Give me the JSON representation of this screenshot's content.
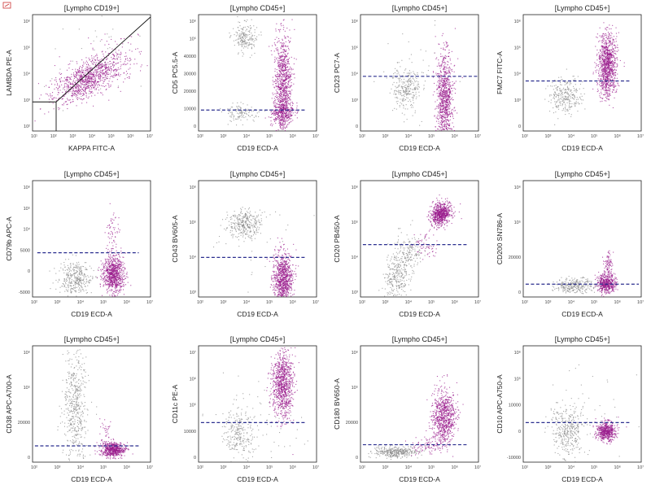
{
  "colors": {
    "gray_population": "#8a8a8a",
    "purple_population": "#9a1c8c",
    "threshold_line": "#2b2f8f"
  },
  "panels": [
    {
      "title": "[Lympho CD19+]",
      "xlabel": "KAPPA FITC-A",
      "ylabel": "LAMBDA PE-A",
      "x_ticks": [
        "10¹",
        "10²",
        "10³",
        "10⁴",
        "10⁵",
        "10⁶",
        "10⁷"
      ],
      "y_ticks": [
        "10⁶",
        "10⁵",
        "10⁴",
        "10³",
        "10²"
      ],
      "threshold": null
    },
    {
      "title": "[Lympho CD45+]",
      "xlabel": "CD19 ECD-A",
      "ylabel": "CD5 PC5.5-A",
      "x_ticks": [
        "10²",
        "10³",
        "10⁴",
        "10⁵",
        "10⁶",
        "10⁷"
      ],
      "y_ticks": [
        "10⁶",
        "10⁵",
        "40000",
        "30000",
        "20000",
        "10000",
        "0"
      ],
      "threshold": "10000"
    },
    {
      "title": "[Lympho CD45+]",
      "xlabel": "CD19 ECD-A",
      "ylabel": "CD23 PC7-A",
      "x_ticks": [
        "10²",
        "10³",
        "10⁴",
        "10⁵",
        "10⁶",
        "10⁷"
      ],
      "y_ticks": [
        "10⁶",
        "10⁵",
        "10⁴",
        "10³",
        "0"
      ],
      "threshold": "above 10⁴"
    },
    {
      "title": "[Lympho CD45+]",
      "xlabel": "CD19 ECD-A",
      "ylabel": "FMC7 FITC-A",
      "x_ticks": [
        "10²",
        "10³",
        "10⁴",
        "10⁵",
        "10⁶",
        "10⁷"
      ],
      "y_ticks": [
        "10⁶",
        "10⁵",
        "10⁴",
        "10³",
        "0"
      ],
      "threshold": "10⁴"
    },
    {
      "title": "[Lympho CD45+]",
      "xlabel": "CD19 ECD-A",
      "ylabel": "CD79b APC-A",
      "x_ticks": [
        "10²",
        "10³",
        "10⁴",
        "10⁵",
        "10⁶",
        "10⁷"
      ],
      "y_ticks": [
        "10⁶",
        "10⁵",
        "10⁴",
        "5000",
        "0",
        "-5000"
      ],
      "threshold": "5000"
    },
    {
      "title": "[Lympho CD45+]",
      "xlabel": "CD19 ECD-A",
      "ylabel": "CD43 BV605-A",
      "x_ticks": [
        "10²",
        "10³",
        "10⁴",
        "10⁵",
        "10⁶",
        "10⁷"
      ],
      "y_ticks": [
        "10⁶",
        "10⁵",
        "10⁴",
        "10³"
      ],
      "threshold": "10⁴"
    },
    {
      "title": "[Lympho CD45+]",
      "xlabel": "CD19 ECD-A",
      "ylabel": "CD20 PB450-A",
      "x_ticks": [
        "10²",
        "10³",
        "10⁴",
        "10⁵",
        "10⁶",
        "10⁷"
      ],
      "y_ticks": [
        "10⁶",
        "10⁵",
        "10⁴",
        "10³"
      ],
      "threshold": "10⁴"
    },
    {
      "title": "[Lympho CD45+]",
      "xlabel": "CD19 ECD-A",
      "ylabel": "CD200 SN786-A",
      "x_ticks": [
        "10²",
        "10³",
        "10⁴",
        "10⁵",
        "10⁶",
        "10⁷"
      ],
      "y_ticks": [
        "10⁶",
        "10⁵",
        "20000",
        "0"
      ],
      "threshold": "low"
    },
    {
      "title": "[Lympho CD45+]",
      "xlabel": "CD19 ECD-A",
      "ylabel": "CD38 APC-A700-A",
      "x_ticks": [
        "10²",
        "10³",
        "10⁴",
        "10⁵",
        "10⁶",
        "10⁷"
      ],
      "y_ticks": [
        "10⁶",
        "10⁵",
        "20000",
        "0"
      ],
      "threshold": "low"
    },
    {
      "title": "[Lympho CD45+]",
      "xlabel": "CD19 ECD-A",
      "ylabel": "CD11c PE-A",
      "x_ticks": [
        "10²",
        "10³",
        "10⁴",
        "10⁵",
        "10⁶",
        "10⁷"
      ],
      "y_ticks": [
        "10⁷",
        "10⁶",
        "10⁵",
        "10000",
        "0"
      ],
      "threshold": "10000"
    },
    {
      "title": "[Lympho CD45+]",
      "xlabel": "CD19 ECD-A",
      "ylabel": "CD180 BV650-A",
      "x_ticks": [
        "10²",
        "10³",
        "10⁴",
        "10⁵",
        "10⁶",
        "10⁷"
      ],
      "y_ticks": [
        "10⁶",
        "10⁵",
        "20000",
        "0"
      ],
      "threshold": "low"
    },
    {
      "title": "[Lympho CD45+]",
      "xlabel": "CD19 ECD-A",
      "ylabel": "CD10 APC-A750-A",
      "x_ticks": [
        "10²",
        "10³",
        "10⁴",
        "10⁵",
        "10⁶",
        "10⁷"
      ],
      "y_ticks": [
        "10⁶",
        "10⁵",
        "10000",
        "0",
        "-10000"
      ],
      "threshold": "5000"
    }
  ],
  "chart_data": [
    {
      "type": "scatter",
      "title": "[Lympho CD19+]",
      "xlabel": "KAPPA FITC-A",
      "ylabel": "LAMBDA PE-A",
      "scale": "log",
      "series": [
        {
          "name": "",
          "color": "#9a1c8c",
          "center": [
            2.8,
            3.1
          ],
          "spread": "diagonal"
        }
      ]
    },
    {
      "type": "scatter",
      "title": "[Lympho CD45+]",
      "xlabel": "CD19 ECD-A",
      "ylabel": "CD5 PC5.5-A",
      "series": [
        {
          "name": "",
          "color": "#8a8a8a"
        },
        {
          "name": "",
          "color": "#9a1c8c"
        }
      ]
    },
    {
      "type": "scatter",
      "title": "[Lympho CD45+]",
      "xlabel": "CD19 ECD-A",
      "ylabel": "CD23 PC7-A",
      "series": [
        {
          "name": "",
          "color": "#8a8a8a"
        },
        {
          "name": "",
          "color": "#9a1c8c"
        }
      ]
    },
    {
      "type": "scatter",
      "title": "[Lympho CD45+]",
      "xlabel": "CD19 ECD-A",
      "ylabel": "FMC7 FITC-A",
      "series": [
        {
          "name": "",
          "color": "#8a8a8a"
        },
        {
          "name": "",
          "color": "#9a1c8c"
        }
      ]
    },
    {
      "type": "scatter",
      "title": "[Lympho CD45+]",
      "xlabel": "CD19 ECD-A",
      "ylabel": "CD79b APC-A",
      "series": [
        {
          "name": "",
          "color": "#8a8a8a"
        },
        {
          "name": "",
          "color": "#9a1c8c"
        }
      ]
    },
    {
      "type": "scatter",
      "title": "[Lympho CD45+]",
      "xlabel": "CD19 ECD-A",
      "ylabel": "CD43 BV605-A",
      "series": [
        {
          "name": "",
          "color": "#8a8a8a"
        },
        {
          "name": "",
          "color": "#9a1c8c"
        }
      ]
    },
    {
      "type": "scatter",
      "title": "[Lympho CD45+]",
      "xlabel": "CD19 ECD-A",
      "ylabel": "CD20 PB450-A",
      "series": [
        {
          "name": "",
          "color": "#8a8a8a"
        },
        {
          "name": "",
          "color": "#9a1c8c"
        }
      ]
    },
    {
      "type": "scatter",
      "title": "[Lympho CD45+]",
      "xlabel": "CD19 ECD-A",
      "ylabel": "CD200 SN786-A",
      "series": [
        {
          "name": "",
          "color": "#8a8a8a"
        },
        {
          "name": "",
          "color": "#9a1c8c"
        }
      ]
    },
    {
      "type": "scatter",
      "title": "[Lympho CD45+]",
      "xlabel": "CD19 ECD-A",
      "ylabel": "CD38 APC-A700-A",
      "series": [
        {
          "name": "",
          "color": "#8a8a8a"
        },
        {
          "name": "",
          "color": "#9a1c8c"
        }
      ]
    },
    {
      "type": "scatter",
      "title": "[Lympho CD45+]",
      "xlabel": "CD19 ECD-A",
      "ylabel": "CD11c PE-A",
      "series": [
        {
          "name": "",
          "color": "#8a8a8a"
        },
        {
          "name": "",
          "color": "#9a1c8c"
        }
      ]
    },
    {
      "type": "scatter",
      "title": "[Lympho CD45+]",
      "xlabel": "CD19 ECD-A",
      "ylabel": "CD180 BV650-A",
      "series": [
        {
          "name": "",
          "color": "#8a8a8a"
        },
        {
          "name": "",
          "color": "#9a1c8c"
        }
      ]
    },
    {
      "type": "scatter",
      "title": "[Lympho CD45+]",
      "xlabel": "CD19 ECD-A",
      "ylabel": "CD10 APC-A750-A",
      "series": [
        {
          "name": "",
          "color": "#8a8a8a"
        },
        {
          "name": "",
          "color": "#9a1c8c"
        }
      ]
    }
  ]
}
